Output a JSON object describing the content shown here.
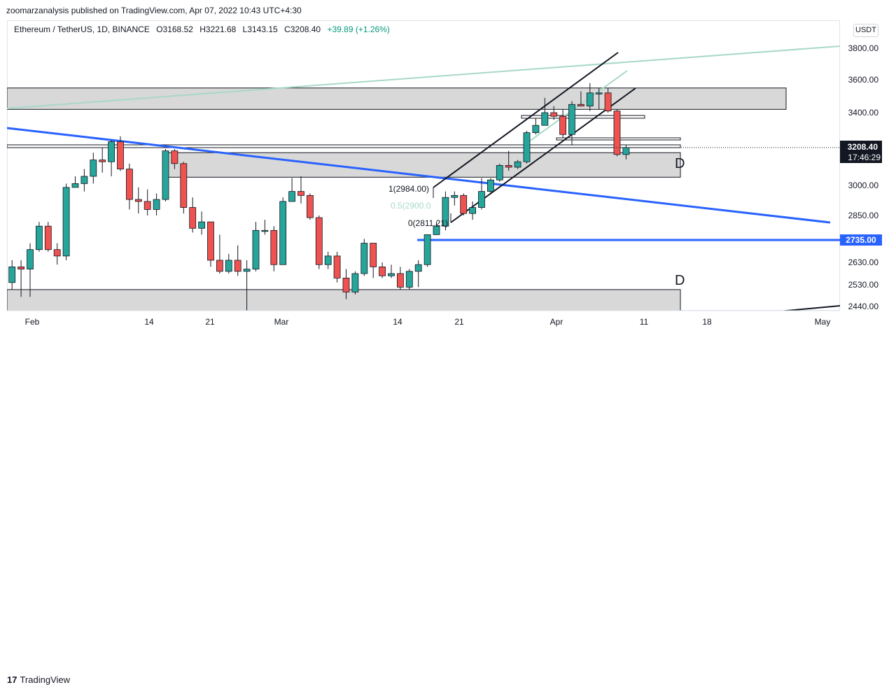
{
  "header": {
    "publish_line": "zoomarzanalysis published on TradingView.com, Apr 07, 2022 10:43 UTC+4:30"
  },
  "symbol": {
    "name": "Ethereum / TetherUS, 1D, BINANCE",
    "open": "O3168.52",
    "high": "H3221.68",
    "low": "L3143.15",
    "close": "C3208.40",
    "change": "+39.89 (+1.26%)"
  },
  "currency_badge": "USDT",
  "footer": {
    "brand": "TradingView",
    "logo_mark": "17"
  },
  "colors": {
    "up": "#26a69a",
    "down": "#ef5350",
    "blue_line": "#2962ff",
    "zone_fill": "#d1d1d1",
    "trend_light": "#a8d8c8"
  },
  "chart_data": {
    "type": "candlestick",
    "symbol": "Ethereum / TetherUS",
    "interval": "1D",
    "exchange": "BINANCE",
    "ylim": [
      2400,
      3880
    ],
    "y_ticks": [
      "3800.00",
      "3600.00",
      "3400.00",
      "3000.00",
      "2850.00",
      "2735.00",
      "2630.00",
      "2530.00",
      "2440.00"
    ],
    "x_ticks": [
      "Feb",
      "14",
      "21",
      "Mar",
      "14",
      "21",
      "Apr",
      "11",
      "18",
      "May"
    ],
    "last_price_label": "3208.40",
    "countdown_label": "17:46:29",
    "level_label": "2735.00",
    "zone_labels": [
      "D",
      "D"
    ],
    "fib_labels": [
      "1(2984.00)",
      "0.5(2900.0",
      "0(2811.21)"
    ],
    "candles": [
      {
        "d": "2022-01-27",
        "o": 2410,
        "h": 2640,
        "l": 2400,
        "c": 2600
      },
      {
        "d": "2022-01-28",
        "o": 2600,
        "h": 2640,
        "l": 2480,
        "c": 2540
      },
      {
        "d": "2022-01-29",
        "o": 2540,
        "h": 2640,
        "l": 2510,
        "c": 2610
      },
      {
        "d": "2022-01-30",
        "o": 2610,
        "h": 2640,
        "l": 2480,
        "c": 2600
      },
      {
        "d": "2022-01-31",
        "o": 2600,
        "h": 2720,
        "l": 2480,
        "c": 2690
      },
      {
        "d": "2022-02-01",
        "o": 2690,
        "h": 2820,
        "l": 2680,
        "c": 2800
      },
      {
        "d": "2022-02-02",
        "o": 2800,
        "h": 2820,
        "l": 2680,
        "c": 2690
      },
      {
        "d": "2022-02-03",
        "o": 2690,
        "h": 2720,
        "l": 2620,
        "c": 2660
      },
      {
        "d": "2022-02-04",
        "o": 2660,
        "h": 3010,
        "l": 2640,
        "c": 2990
      },
      {
        "d": "2022-02-05",
        "o": 2990,
        "h": 3050,
        "l": 2990,
        "c": 3010
      },
      {
        "d": "2022-02-06",
        "o": 3010,
        "h": 3090,
        "l": 2970,
        "c": 3050
      },
      {
        "d": "2022-02-07",
        "o": 3050,
        "h": 3180,
        "l": 3010,
        "c": 3140
      },
      {
        "d": "2022-02-08",
        "o": 3140,
        "h": 3210,
        "l": 3070,
        "c": 3130
      },
      {
        "d": "2022-02-09",
        "o": 3130,
        "h": 3250,
        "l": 3050,
        "c": 3240
      },
      {
        "d": "2022-02-10",
        "o": 3240,
        "h": 3270,
        "l": 3080,
        "c": 3090
      },
      {
        "d": "2022-02-11",
        "o": 3090,
        "h": 3120,
        "l": 2880,
        "c": 2930
      },
      {
        "d": "2022-02-12",
        "o": 2930,
        "h": 2990,
        "l": 2860,
        "c": 2920
      },
      {
        "d": "2022-02-13",
        "o": 2920,
        "h": 2980,
        "l": 2850,
        "c": 2880
      },
      {
        "d": "2022-02-14",
        "o": 2880,
        "h": 2960,
        "l": 2850,
        "c": 2930
      },
      {
        "d": "2022-02-15",
        "o": 2930,
        "h": 3200,
        "l": 2920,
        "c": 3190
      },
      {
        "d": "2022-02-16",
        "o": 3190,
        "h": 3200,
        "l": 3090,
        "c": 3120
      },
      {
        "d": "2022-02-17",
        "o": 3120,
        "h": 3130,
        "l": 2860,
        "c": 2890
      },
      {
        "d": "2022-02-18",
        "o": 2890,
        "h": 2940,
        "l": 2770,
        "c": 2790
      },
      {
        "d": "2022-02-19",
        "o": 2790,
        "h": 2870,
        "l": 2760,
        "c": 2820
      },
      {
        "d": "2022-02-20",
        "o": 2820,
        "h": 2820,
        "l": 2610,
        "c": 2640
      },
      {
        "d": "2022-02-21",
        "o": 2640,
        "h": 2760,
        "l": 2580,
        "c": 2590
      },
      {
        "d": "2022-02-22",
        "o": 2590,
        "h": 2670,
        "l": 2580,
        "c": 2640
      },
      {
        "d": "2022-02-23",
        "o": 2640,
        "h": 2710,
        "l": 2570,
        "c": 2590
      },
      {
        "d": "2022-02-24",
        "o": 2590,
        "h": 2640,
        "l": 2330,
        "c": 2600
      },
      {
        "d": "2022-02-25",
        "o": 2600,
        "h": 2820,
        "l": 2590,
        "c": 2780
      },
      {
        "d": "2022-02-26",
        "o": 2780,
        "h": 2830,
        "l": 2760,
        "c": 2780
      },
      {
        "d": "2022-02-27",
        "o": 2780,
        "h": 2800,
        "l": 2590,
        "c": 2620
      },
      {
        "d": "2022-02-28",
        "o": 2620,
        "h": 2940,
        "l": 2620,
        "c": 2920
      },
      {
        "d": "2022-03-01",
        "o": 2920,
        "h": 3040,
        "l": 2920,
        "c": 2970
      },
      {
        "d": "2022-03-02",
        "o": 2970,
        "h": 3050,
        "l": 2910,
        "c": 2950
      },
      {
        "d": "2022-03-03",
        "o": 2950,
        "h": 2960,
        "l": 2830,
        "c": 2840
      },
      {
        "d": "2022-03-04",
        "o": 2840,
        "h": 2850,
        "l": 2600,
        "c": 2620
      },
      {
        "d": "2022-03-05",
        "o": 2620,
        "h": 2680,
        "l": 2600,
        "c": 2660
      },
      {
        "d": "2022-03-06",
        "o": 2660,
        "h": 2680,
        "l": 2540,
        "c": 2560
      },
      {
        "d": "2022-03-07",
        "o": 2560,
        "h": 2600,
        "l": 2470,
        "c": 2500
      },
      {
        "d": "2022-03-08",
        "o": 2500,
        "h": 2590,
        "l": 2490,
        "c": 2580
      },
      {
        "d": "2022-03-09",
        "o": 2580,
        "h": 2740,
        "l": 2570,
        "c": 2720
      },
      {
        "d": "2022-03-10",
        "o": 2720,
        "h": 2720,
        "l": 2560,
        "c": 2610
      },
      {
        "d": "2022-03-11",
        "o": 2610,
        "h": 2630,
        "l": 2560,
        "c": 2570
      },
      {
        "d": "2022-03-12",
        "o": 2570,
        "h": 2620,
        "l": 2560,
        "c": 2580
      },
      {
        "d": "2022-03-13",
        "o": 2580,
        "h": 2610,
        "l": 2510,
        "c": 2520
      },
      {
        "d": "2022-03-14",
        "o": 2520,
        "h": 2600,
        "l": 2510,
        "c": 2590
      },
      {
        "d": "2022-03-15",
        "o": 2590,
        "h": 2640,
        "l": 2520,
        "c": 2620
      },
      {
        "d": "2022-03-16",
        "o": 2620,
        "h": 2760,
        "l": 2610,
        "c": 2760
      },
      {
        "d": "2022-03-17",
        "o": 2760,
        "h": 2820,
        "l": 2760,
        "c": 2800
      },
      {
        "d": "2022-03-18",
        "o": 2800,
        "h": 2970,
        "l": 2780,
        "c": 2940
      },
      {
        "d": "2022-03-19",
        "o": 2940,
        "h": 2970,
        "l": 2900,
        "c": 2950
      },
      {
        "d": "2022-03-20",
        "o": 2950,
        "h": 2960,
        "l": 2850,
        "c": 2860
      },
      {
        "d": "2022-03-21",
        "o": 2860,
        "h": 2920,
        "l": 2830,
        "c": 2890
      },
      {
        "d": "2022-03-22",
        "o": 2890,
        "h": 3040,
        "l": 2880,
        "c": 2970
      },
      {
        "d": "2022-03-23",
        "o": 2970,
        "h": 3040,
        "l": 2960,
        "c": 3030
      },
      {
        "d": "2022-03-24",
        "o": 3030,
        "h": 3120,
        "l": 3020,
        "c": 3110
      },
      {
        "d": "2022-03-25",
        "o": 3110,
        "h": 3190,
        "l": 3080,
        "c": 3100
      },
      {
        "d": "2022-03-26",
        "o": 3100,
        "h": 3140,
        "l": 3090,
        "c": 3130
      },
      {
        "d": "2022-03-27",
        "o": 3130,
        "h": 3300,
        "l": 3120,
        "c": 3290
      },
      {
        "d": "2022-03-28",
        "o": 3290,
        "h": 3370,
        "l": 3280,
        "c": 3330
      },
      {
        "d": "2022-03-29",
        "o": 3330,
        "h": 3490,
        "l": 3330,
        "c": 3400
      },
      {
        "d": "2022-03-30",
        "o": 3400,
        "h": 3440,
        "l": 3360,
        "c": 3380
      },
      {
        "d": "2022-03-31",
        "o": 3380,
        "h": 3420,
        "l": 3260,
        "c": 3280
      },
      {
        "d": "2022-04-01",
        "o": 3280,
        "h": 3470,
        "l": 3220,
        "c": 3450
      },
      {
        "d": "2022-04-02",
        "o": 3450,
        "h": 3530,
        "l": 3440,
        "c": 3440
      },
      {
        "d": "2022-04-03",
        "o": 3440,
        "h": 3580,
        "l": 3410,
        "c": 3520
      },
      {
        "d": "2022-04-04",
        "o": 3520,
        "h": 3550,
        "l": 3420,
        "c": 3520
      },
      {
        "d": "2022-04-05",
        "o": 3520,
        "h": 3550,
        "l": 3400,
        "c": 3410
      },
      {
        "d": "2022-04-06",
        "o": 3410,
        "h": 3420,
        "l": 3160,
        "c": 3170
      },
      {
        "d": "2022-04-07",
        "o": 3170,
        "h": 3222,
        "l": 3143,
        "c": 3208
      }
    ],
    "zones": [
      {
        "from": "2022-01-27",
        "to": "2022-04-15",
        "bottom": 3420,
        "top": 3550
      },
      {
        "from": "2022-02-16",
        "to": "2022-04-15",
        "bottom": 3045,
        "top": 3180
      },
      {
        "from": "2022-01-27",
        "to": "2022-04-15",
        "bottom": 2420,
        "top": 2510
      }
    ],
    "lines": [
      {
        "name": "blue downtrend",
        "p1": [
          "2022-01-27",
          3290
        ],
        "p2": [
          "2022-05-01",
          2830
        ]
      },
      {
        "name": "2735 level",
        "p1": [
          "2022-03-16",
          2735
        ],
        "p2": [
          "2022-05-05",
          2735
        ]
      },
      {
        "name": "light trendline",
        "p1": [
          "2022-01-27",
          3420
        ],
        "p2": [
          "2022-05-05",
          3810
        ]
      },
      {
        "name": "channel upper",
        "p1": [
          "2022-03-19",
          3000
        ],
        "p2": [
          "2022-04-13",
          3770
        ]
      },
      {
        "name": "channel lower",
        "p1": [
          "2022-03-21",
          2810
        ],
        "p2": [
          "2022-04-14",
          3510
        ]
      },
      {
        "name": "inner light line",
        "p1": [
          "2022-03-27",
          3140
        ],
        "p2": [
          "2022-04-13",
          3660
        ]
      },
      {
        "name": "bottom right line",
        "p1": [
          "2022-04-22",
          2420
        ],
        "p2": [
          "2022-05-05",
          2450
        ]
      }
    ]
  }
}
